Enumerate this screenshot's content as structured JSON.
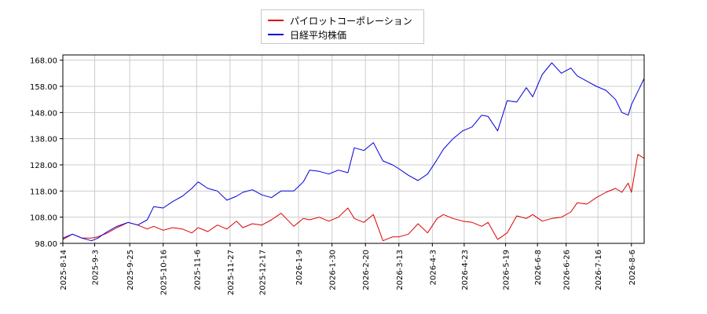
{
  "colors": {
    "series1": "#dd0000",
    "series2": "#0000dd",
    "grid": "#cccccc",
    "axis": "#000000"
  },
  "legend": {
    "placement": "top-center",
    "items": [
      {
        "label": "パイロットコーポレーション",
        "color": "#dd0000"
      },
      {
        "label": "日経平均株価",
        "color": "#0000dd"
      }
    ]
  },
  "chart_data": {
    "type": "line",
    "title": "",
    "xlabel": "",
    "ylabel": "",
    "grid": true,
    "ylim": [
      98.0,
      170.0
    ],
    "yticks": [
      "98.00",
      "108.00",
      "118.00",
      "128.00",
      "138.00",
      "148.00",
      "158.00",
      "168.00"
    ],
    "xticks": [
      "2025-8-14",
      "2025-9-3",
      "2025-9-25",
      "2025-10-16",
      "2025-11-6",
      "2025-11-27",
      "2025-12-17",
      "2026-1-9",
      "2026-1-30",
      "2026-2-20",
      "2026-3-13",
      "2026-4-3",
      "2026-4-23",
      "2026-5-19",
      "2026-6-8",
      "2026-6-26",
      "2026-7-16",
      "2026-8-6"
    ],
    "x": [
      "2025-8-14",
      "2025-8-20",
      "2025-8-26",
      "2025-9-1",
      "2025-9-5",
      "2025-9-11",
      "2025-9-17",
      "2025-9-24",
      "2025-9-30",
      "2025-10-6",
      "2025-10-10",
      "2025-10-16",
      "2025-10-22",
      "2025-10-28",
      "2025-11-3",
      "2025-11-7",
      "2025-11-13",
      "2025-11-19",
      "2025-11-25",
      "2025-12-1",
      "2025-12-5",
      "2025-12-11",
      "2025-12-17",
      "2025-12-23",
      "2025-12-29",
      "2026-1-6",
      "2026-1-12",
      "2026-1-16",
      "2026-1-22",
      "2026-1-28",
      "2026-2-3",
      "2026-2-9",
      "2026-2-13",
      "2026-2-19",
      "2026-2-25",
      "2026-3-3",
      "2026-3-9",
      "2026-3-13",
      "2026-3-19",
      "2026-3-25",
      "2026-3-31",
      "2026-4-6",
      "2026-4-10",
      "2026-4-16",
      "2026-4-22",
      "2026-4-28",
      "2026-5-4",
      "2026-5-8",
      "2026-5-14",
      "2026-5-20",
      "2026-5-26",
      "2026-6-1",
      "2026-6-5",
      "2026-6-11",
      "2026-6-17",
      "2026-6-23",
      "2026-6-29",
      "2026-7-3",
      "2026-7-9",
      "2026-7-15",
      "2026-7-21",
      "2026-7-27",
      "2026-7-31",
      "2026-8-4",
      "2026-8-6",
      "2026-8-10",
      "2026-8-14"
    ],
    "series": [
      {
        "name": "パイロットコーポレーション",
        "color": "#dd0000",
        "values": [
          99.5,
          101.5,
          100.0,
          100.0,
          100.5,
          102.0,
          104.0,
          106.0,
          105.0,
          103.5,
          104.5,
          103.0,
          104.0,
          103.5,
          102.0,
          104.0,
          102.5,
          105.0,
          103.5,
          106.5,
          104.0,
          105.5,
          105.0,
          107.0,
          109.5,
          104.5,
          107.5,
          107.0,
          108.0,
          106.5,
          108.0,
          111.5,
          107.5,
          106.0,
          109.0,
          99.0,
          100.5,
          100.5,
          101.5,
          105.5,
          102.0,
          107.5,
          109.0,
          107.5,
          106.5,
          106.0,
          104.5,
          106.0,
          99.5,
          102.0,
          108.5,
          107.5,
          109.0,
          106.5,
          107.5,
          108.0,
          110.0,
          113.5,
          113.0,
          115.5,
          117.5,
          119.0,
          117.5,
          121.0,
          117.5,
          132.0,
          130.5
        ]
      },
      {
        "name": "日経平均株価",
        "color": "#0000dd",
        "values": [
          100.0,
          101.5,
          100.0,
          99.0,
          100.0,
          102.5,
          104.5,
          106.0,
          105.0,
          107.0,
          112.0,
          111.5,
          114.0,
          116.0,
          119.0,
          121.5,
          119.0,
          118.0,
          114.5,
          116.0,
          117.5,
          118.5,
          116.5,
          115.5,
          118.0,
          118.0,
          121.5,
          126.0,
          125.5,
          124.5,
          126.0,
          125.0,
          134.5,
          133.5,
          136.5,
          129.5,
          128.0,
          126.5,
          124.0,
          122.0,
          124.5,
          130.0,
          134.0,
          138.0,
          141.0,
          142.5,
          147.0,
          146.5,
          141.0,
          152.5,
          152.0,
          157.5,
          154.0,
          162.5,
          167.0,
          163.0,
          165.0,
          162.0,
          160.0,
          158.0,
          156.5,
          153.0,
          148.0,
          147.0,
          151.0,
          156.0,
          161.0
        ]
      }
    ]
  }
}
